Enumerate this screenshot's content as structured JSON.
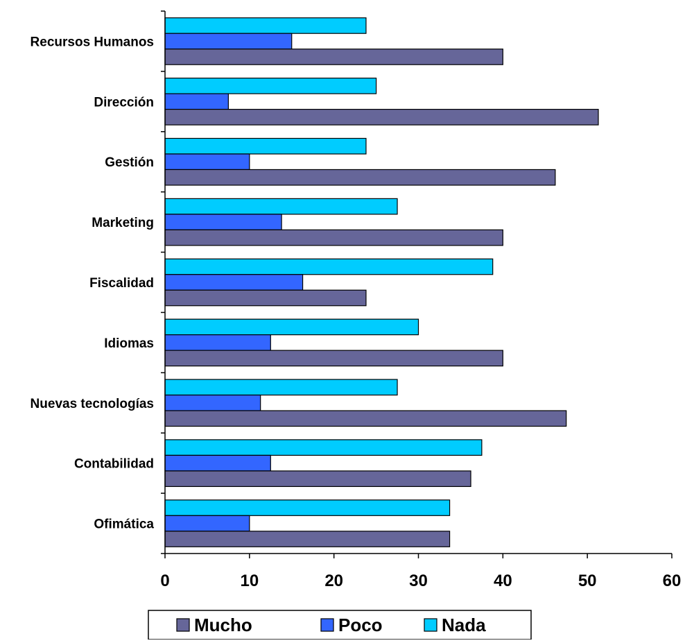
{
  "chart_data": {
    "type": "bar",
    "orientation": "horizontal",
    "categories": [
      "Recursos Humanos",
      "Dirección",
      "Gestión",
      "Marketing",
      "Fiscalidad",
      "Idiomas",
      "Nuevas tecnologías",
      "Contabilidad",
      "Ofimática"
    ],
    "series": [
      {
        "name": "Mucho",
        "color": "#666699",
        "values": [
          40,
          51.3,
          46.2,
          40,
          23.8,
          40,
          47.5,
          36.2,
          33.7
        ]
      },
      {
        "name": "Poco",
        "color": "#3366FF",
        "values": [
          15,
          7.5,
          10,
          13.8,
          16.3,
          12.5,
          11.3,
          12.5,
          10
        ]
      },
      {
        "name": "Nada",
        "color": "#00CCFF",
        "values": [
          23.8,
          25,
          23.8,
          27.5,
          38.8,
          30,
          27.5,
          37.5,
          33.7
        ]
      }
    ],
    "x_ticks": [
      "0",
      "10",
      "20",
      "30",
      "40",
      "50",
      "60"
    ],
    "xlim": [
      0,
      60
    ],
    "title": "",
    "xlabel": "",
    "ylabel": "",
    "grid": false,
    "legend_position": "bottom"
  }
}
